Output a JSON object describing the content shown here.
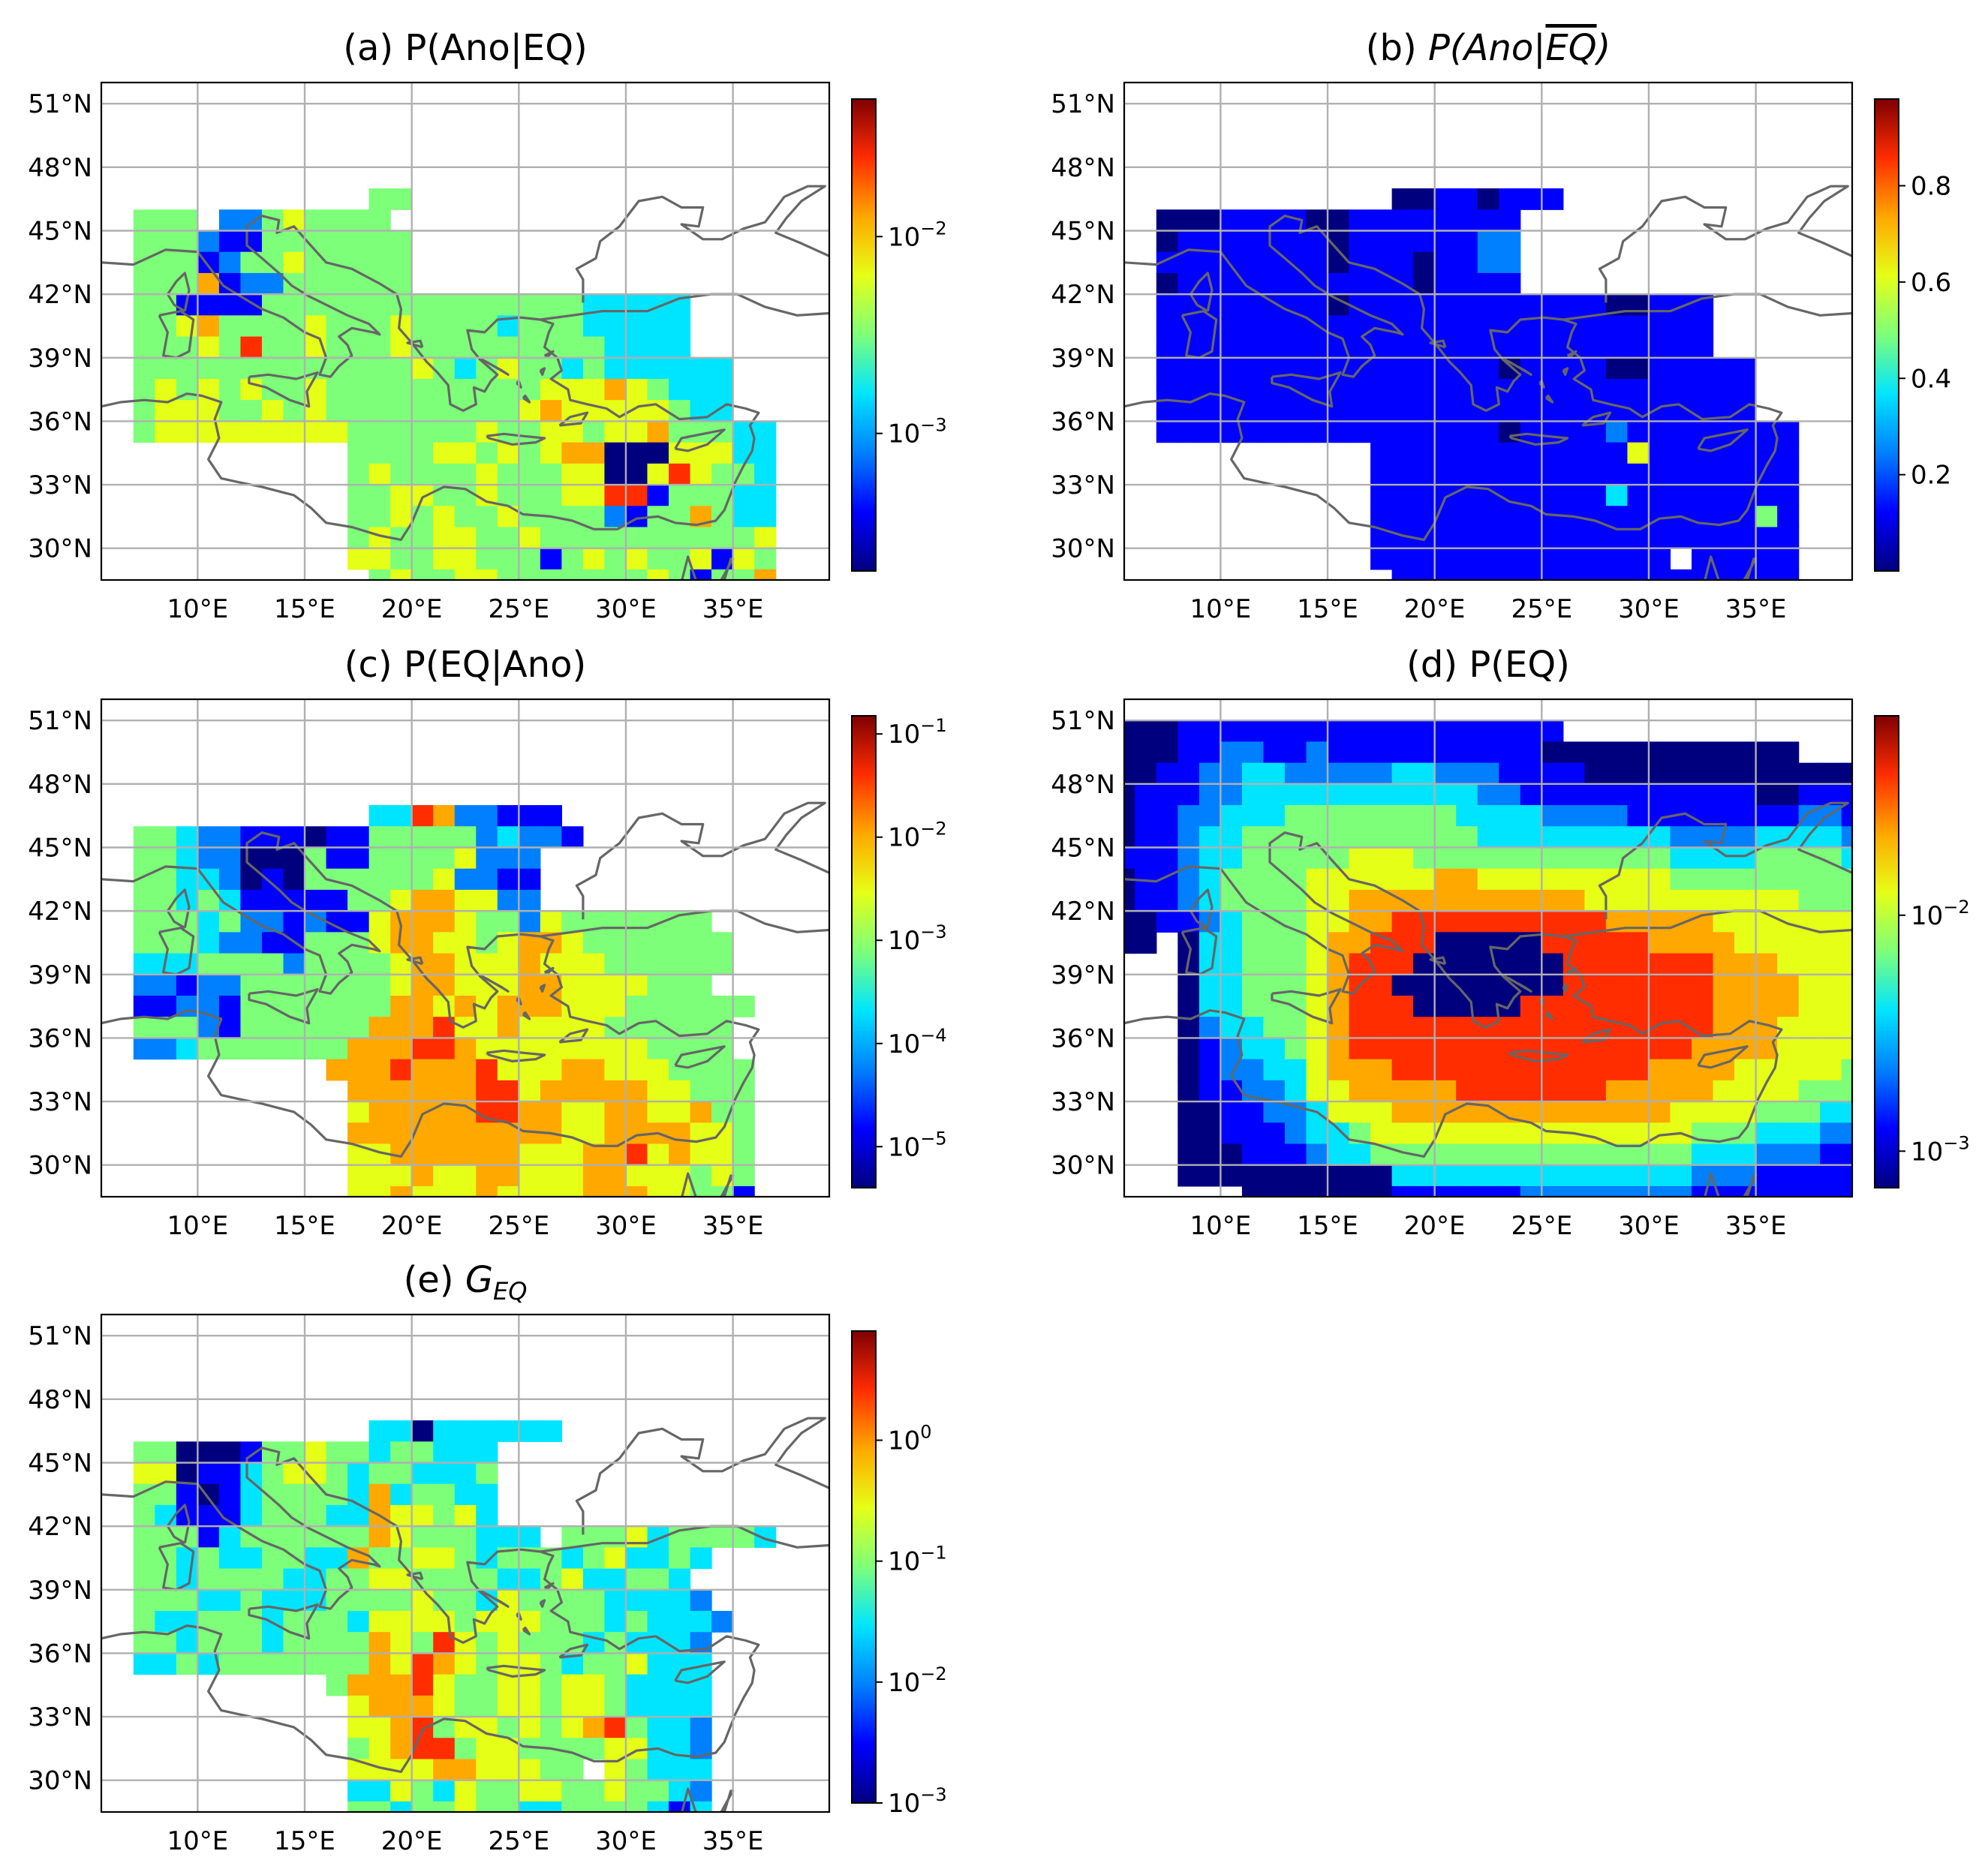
{
  "figure": {
    "lat_ticks": [
      "51°N",
      "48°N",
      "45°N",
      "42°N",
      "39°N",
      "36°N",
      "33°N",
      "30°N"
    ],
    "lon_ticks": [
      "10°E",
      "15°E",
      "20°E",
      "25°E",
      "30°E",
      "35°E"
    ],
    "palette": [
      "#00007f",
      "#0000ff",
      "#0080ff",
      "#00e5ff",
      "#7dff7a",
      "#e5ff17",
      "#ffa800",
      "#ff2d00",
      "#7f0000"
    ],
    "gridline_color": "#b0b0b0",
    "coastline_color": "#666666"
  },
  "chart_data": [
    {
      "id": "a",
      "type": "heatmap",
      "title_prefix": "(a) ",
      "title": "P(Ano|EQ)",
      "title_style": "roman",
      "xlim": [
        5.5,
        39.5
      ],
      "ylim": [
        28.5,
        52
      ],
      "scale": "log",
      "colorbar": {
        "min": 0.0002,
        "max": 0.05,
        "ticks": [
          {
            "value": 0.01,
            "base": "10",
            "exp": "−2"
          },
          {
            "value": 0.001,
            "base": "10",
            "exp": "−3"
          }
        ]
      },
      "grid": {
        "lon0": 7.5,
        "lat_top": 48.5,
        "dlon": 1.0,
        "dlat": 1.0,
        "rows": [
          "....................................",
          "....................................",
          "...........GGLLLL...................",
          "GGGLCCGYGGGGLLLLL...................",
          "GGGCBBGGGGGGGLLLL...................",
          "GGGBCGGYGGGGGLLLL...................",
          "GGGOBCCGGGGGGLLLL...................",
          "GGBBBBGGGGGGGGGGGGGGGTTTTT..........",
          "GGYOGGGGYGGGYGGGGTGGGTTTTT..........",
          "GGGYGRGGYGGGYGGGGGGGGGTTTT..........",
          "GGGGGGGGGGGGGYGTGYGGTGTTTTTT......GGT",
          "GYGYGYGGYGGGGGGGGGGYYYOYGTTT......YYY",
          "GYYYGGYGYGGGGGGGGGYOYYYYYGTT......YYY",
          "GYYYYYYYYYGGGGGGYGGYYGYYOGGGTT....YYY",
          "..........GGGGYYGYGYOODDDYYYTT....YYY",
          "..........GYGGGGYGGGYYDDYRYGGT....YYY",
          "..........GGYYGGYGGGYYRRBGGGTT....YYY",
          "..........GGYGYGGYGGGGCBGGOGTT....YYY",
          "..........GYGGYYGGYGGGGGGGGGGY....YYY",
          "..........YYGGYYGGGBGYGYGGYBYG......",
          "...........GYGGYYGGGGGGGYGBGGO......",
          "...........YYGGGGGGYGGYGGGBGYG......",
          "...............GGYGGYGOGGGGGBT......",
          "...............GGYGGGGGGYGYG........",
          "................BGGGGGGGGGYG........",
          "....................................",
          "...................................."
        ]
      }
    },
    {
      "id": "b",
      "type": "heatmap",
      "title_prefix": "(b) ",
      "title": "P(Ano|EQ)",
      "title_style": "italic-overline",
      "xlim": [
        5.5,
        39.5
      ],
      "ylim": [
        28.5,
        52
      ],
      "scale": "linear",
      "colorbar": {
        "min": 0.0,
        "max": 0.98,
        "ticks": [
          {
            "value": 0.8,
            "label": "0.8"
          },
          {
            "value": 0.6,
            "label": "0.6"
          },
          {
            "value": 0.4,
            "label": "0.4"
          },
          {
            "value": 0.2,
            "label": "0.2"
          }
        ]
      },
      "grid": {
        "lon0": 7.5,
        "lat_top": 48.5,
        "dlon": 1.0,
        "dlat": 1.0,
        "rows": [
          "....................................",
          "....................................",
          "...........DDBBDBBB.................",
          "DDDBBBBDDBBBBBBBB...................",
          "DBBBBBBBDBBBBBBCC...................",
          "BBBBBBBBDBBBDBBCC...................",
          "DBBBBBBBBBBBDBBBB...................",
          "BBBBBBBBDBBBBBBBBBBBBDDBBB..........",
          "BBBBBBBBBBBBBBBBBBBBBBBBBB..........",
          "BBBBBBBBBBBBBBBBBBBBBBBBBB..........",
          "BBBBBBBBBBBBBBBBDBBBBDDBBBBB......BBB",
          "BBBBBBBBBBBBBBBBBBBBBBBBBBBB......BBB",
          "BBBBBBBBBBBBBBBBBBBBBBBBBBBB......BBB",
          "BBBBBBBBBBBBBBBBDBBBBCBBBBBBBB....BCC",
          "..........BBBBBBBBBBBBYBBBBBBB....BCC",
          "..........BBBBBBBBBBBBBBBBBBBB....BCC",
          "..........BBBBBBBBBBBTBBBBBBBB....BCC",
          "..........BBBBBBBBBBBBBBBBBBGB....BCC",
          "..........BBBBBBBBBBBBBBBBBBBB....BCC",
          "..........BBBBBBBBBBBBBB.BBBBB......",
          "...........BBBBBBBBBBBBBBBBBBB......",
          "...........BBBBBBBBBBBBBBBBBBB......",
          "...............RRBBCBBBBBBBBBB......",
          "...............RRBBBBBYBBBBBTR......",
          "................BBBBBBBBBBBBBB......",
          "....................................",
          "...................................."
        ]
      }
    },
    {
      "id": "c",
      "type": "heatmap",
      "title_prefix": "(c) ",
      "title": "P(EQ|Ano)",
      "title_style": "roman",
      "xlim": [
        5.5,
        39.5
      ],
      "ylim": [
        28.5,
        52
      ],
      "scale": "log",
      "colorbar": {
        "min": 4e-06,
        "max": 0.15,
        "ticks": [
          {
            "value": 0.1,
            "base": "10",
            "exp": "−1"
          },
          {
            "value": 0.01,
            "base": "10",
            "exp": "−2"
          },
          {
            "value": 0.001,
            "base": "10",
            "exp": "−3"
          },
          {
            "value": 0.0001,
            "base": "10",
            "exp": "−4"
          },
          {
            "value": 1e-05,
            "base": "10",
            "exp": "−5"
          }
        ]
      },
      "grid": {
        "lon0": 7.5,
        "lat_top": 48.5,
        "dlon": 1.0,
        "dlat": 1.0,
        "rows": [
          "....................................",
          "....................................",
          "...........TTROCCBBB................",
          "GGTCCBBBDBBGGGGGCTCCB...............",
          "GGTCCDDDGBBGGGGYCCC.................",
          "GGTTCDBDGGGGGGYCCBB.................",
          "GGTGTBBBBBGGYOOYYCC.................",
          "GGGTGCCBCBBYOOOYGGCYGGGGGGG..........",
          "GGGTCCBBGGGYOOYYGYOOYGGGGGGG.........",
          "TTTGGGGCGGGGYOOYYYOYYYGGGGGG.........",
          "CCBCCGGGGGGGYOOYYYOOYYYYGGG.........",
          "BBCCBGGGGGGGOOYOYOOOYYYGGGGGG......CGGG",
          "GGGCBGGGGGGOOORYYOYYYYGGGGGG......GGGG",
          "CCTGGGGGGGOOORROYYYYYYYYGGGG......GGGG",
          ".........OOOROOORYYYOOYYYGGGG.....GGGG",
          "..........OOOOOORRYOOOOOYYGGG.....GGGG",
          "..........YOOOOORROOYYOOYYOGG.....GGGG",
          "..........OOOOOOOOOOYYOOOOYYG.....GGGG",
          "..........YYOOOOOOYYYOORYOYYG.....GGGG",
          "..........YYYOYYOOYYYOOYYYGYG.....GGGG",
          "..........YYOYYYOYYYYOOOYYGGB.........",
          "..........YYYYGGYYYYYOOOYGGGB.........",
          "..........YGBBGYOYYYYOOYYGBGG.........",
          "...............GGTGGGYYGGGGG.........",
          "................TTTTTGGTTTT..........",
          "....................................",
          "...................................."
        ]
      }
    },
    {
      "id": "d",
      "type": "heatmap",
      "title_prefix": "(d) ",
      "title": "P(EQ)",
      "title_style": "roman",
      "xlim": [
        5.5,
        39.5
      ],
      "ylim": [
        28.5,
        52
      ],
      "scale": "log",
      "colorbar": {
        "min": 0.0007,
        "max": 0.07,
        "ticks": [
          {
            "value": 0.01,
            "base": "10",
            "exp": "−2"
          },
          {
            "value": 0.001,
            "base": "10",
            "exp": "−3"
          }
        ]
      },
      "grid": {
        "lon0": 5.5,
        "lat_top": 50.5,
        "dlon": 1.0,
        "dlat": 1.0,
        "rows": [
          "DDDBBBBBBBBBBBBBBBBBB.................",
          "DDDBBCCBBCBBBBBBBBBBDDDDDDDDDDDD......",
          "DDBBCCTTCCCCCTTCCCBBBBDDDDDDDDDDDDD...",
          "DBBBCCTTTTTTTTTTTCCBBBBBBBBBBBDDBBBBBB",
          "DBBCCTTTGGGGGGGGTTTTCCCCBBBBBBBBCCBBBB",
          "DBBCTTGGGGGGGGGGGTTTTTTTTTCCCCTTTTCCBB",
          "BBBCTTGGGGGYYYGGGGGGGGGGGGTTTTGGGGTTCC",
          "DBBCTGGGGYYYYYYOOYYYYYYYYYGGGGGGGGGTTC",
          "DBBCTGGGGYYOOOOOOOOOOOYYYYYYYYYYGGGGTT",
          "DDBBCTGGGYYOORRRRRRRRRROOOOOYYYYYYYYGG",
          "DD.DTTGGGYOORRRDDDDDRRRRROOOOYYYYYYYYG",
          "...DTTGGGYORRRDDDDDDDRRRRRRROOOYYYYYYY",
          "...DTTGGGYORRDDDDDDDDRRRRRRROOOOYYYYYY",
          "...DTTGGGYORRRDDDDDRRRRRRRRROOOOYYYYYY",
          "...DCTTGGYORRRRRRRRRRRRRRRRROOOYYYYYYG",
          "...DBCTTGYORRRRRRRRRRRRRRRROOOOYYYYYGG",
          "...DBCCTTYOOORRRRRRRRRRRROOOOYYYYYGGGT",
          "...DBBCCTYYOOOOORRRRRRROOOOOYYYYGGGTTT",
          "...DDBBCCTYYYOOOOOOOOOOOOOYYYYGGGTTCCC",
          "...DDBBBCTTGYYYYYYYYYYYYYYYGGGTTTCCBBB",
          "...DDDBBBCTTGGGGGGGGGGGGGGGTTTCCCBBBD.",
          "...DDDDDDDDDDTTTTTTTTTTTTTTCCCBBBBBBD.",
          "......DDDDDDDBBBBBBCCCCCCCCBBBBBBBBBD.",
          "......DDDDDDDDDDDDDDDDDDDDDBBCCCCCCCD.",
          "......DDDDDDDDDDDDDDDDDDDDDBBCCCCCBBD.",
          "......DDDDDDD.........DDDDDBBCCCBBBB.",
          "......DDDDDDD.........DDDDDDBBBBBBD.."
        ]
      }
    },
    {
      "id": "e",
      "type": "heatmap",
      "title_prefix": "(e) ",
      "title": "G",
      "title_subscript": "EQ",
      "title_style": "italic-subscript",
      "xlim": [
        5.5,
        39.5
      ],
      "ylim": [
        28.5,
        52
      ],
      "scale": "log",
      "colorbar": {
        "min": 0.001,
        "max": 8,
        "ticks": [
          {
            "value": 1,
            "base": "10",
            "exp": "0"
          },
          {
            "value": 0.1,
            "base": "10",
            "exp": "−1"
          },
          {
            "value": 0.01,
            "base": "10",
            "exp": "−2"
          },
          {
            "value": 0.001,
            "base": "10",
            "exp": "−3"
          }
        ]
      },
      "grid": {
        "lon0": 7.5,
        "lat_top": 48.5,
        "dlon": 1.0,
        "dlat": 1.0,
        "rows": [
          "....................................",
          "....................................",
          "...........TTDTTTTTT................",
          "GGDDDBGGYGGTGGTTT...................",
          "YYDBBTGYYGTGGTTTG...................",
          "GGBDBTGGGGTOTGGTT...................",
          "GTBBBTGGGTTOYYGYT...................",
          "GGGBTGGGGGGOYGGGTTT.GGGYTGGGGT........",
          "GGTGTTGGTTOGGYYGTGGGTGYTTGT..........",
          "GGTGGGGTTGGYYGGGGTTGYTTGGT...........",
          "GGGTTGTTTGGGGYGGTYGGGGTTTTC..........",
          "GTTGGGTGGGTYYYYGYYYGGGTGTTTC......CCC",
          "GGTGGGTGGGGOYGRYGYGGGTGTTTC.......TTT",
          "TTGTGGGGGGGOYROYGYYGTGGYTTT.......TTT",
          ".........GOOORYGGYYGYYGTTTT.......TTT",
          "..........YOOOYGGYYGYYGTTTT.......TTT",
          "..........YYORGYYGYGYORGTTC.......TTT",
          "..........GYORRGYYGGGGYYTTC.......TTT",
          "..........YYYYOOYYYGG.YGTTT.......TTT",
          "..........TTYGTYGGYYGGYGGTC.......TTT",
          "..........GGTGGYGGTTGGGGTBT.........",
          "..........BBGGGYGGYYOYYTGTT.........",
          "..........BBBBGGYGGGYOOGGTT.........",
          "..............GGGGGGYOYGGTT.........",
          "...............TGGYGOGGYGB..........",
          "...............TTTTTTTTTT...........",
          "...................................."
        ]
      }
    }
  ]
}
